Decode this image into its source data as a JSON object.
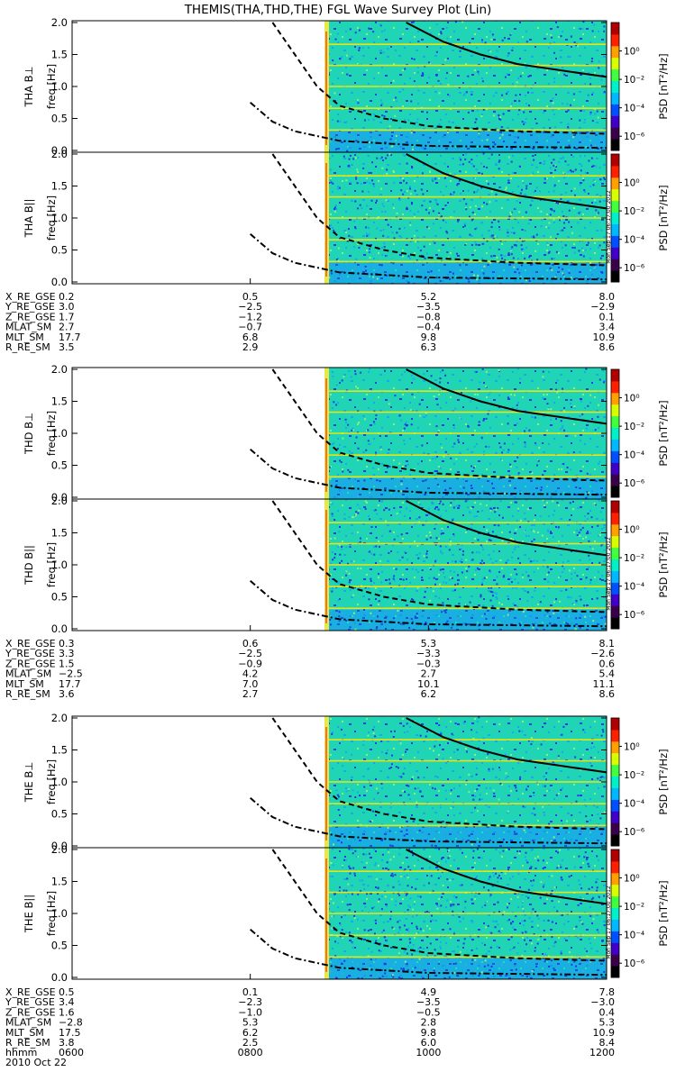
{
  "title": "THEMIS(THA,THD,THE) FGL Wave Survey Plot (Lin)",
  "colors": {
    "background": "#ffffff",
    "noise_low": "#1a3de0",
    "noise_mid": "#19a8e8",
    "noise_high": "#1fe6a8",
    "band_line": "#ffe600",
    "hot_edge": "#ff2020",
    "curve": "#000000"
  },
  "colorbar": {
    "label": "PSD [nT²/Hz]",
    "tick_labels": [
      "10⁰",
      "10⁻²",
      "10⁻⁴",
      "10⁻⁶"
    ],
    "colors": [
      "#000000",
      "#3a004a",
      "#4000c8",
      "#0050ff",
      "#00b8ff",
      "#00f0c8",
      "#40ff40",
      "#d8ff00",
      "#ffa000",
      "#ff2000",
      "#b00000"
    ]
  },
  "stamp": "Mon Sep 17 06:17:00 2012",
  "frequency_ticks": [
    "0.0",
    "0.5",
    "1.0",
    "1.5",
    "2.0"
  ],
  "time_axis": {
    "row_label": "hhmm",
    "ticks": [
      "0600",
      "0800",
      "1000",
      "1200"
    ],
    "date": "2010 Oct 22"
  },
  "ephem_row_labels": [
    "X_RE_GSE",
    "Y_RE_GSE",
    "Z_RE_GSE",
    "MLAT_SM",
    "MLT_SM",
    "R_RE_SM"
  ],
  "probes": [
    {
      "id": "THA",
      "panels": [
        {
          "ylabel": "THA B⊥",
          "freq_label": "freq [Hz]"
        },
        {
          "ylabel": "THA B||",
          "freq_label": "freq [Hz]"
        }
      ],
      "ephemeris": [
        [
          "0.2",
          "0.5",
          "5.2",
          "8.0"
        ],
        [
          "3.0",
          "−2.5",
          "−3.5",
          "−2.9"
        ],
        [
          "1.7",
          "−1.2",
          "−0.8",
          "0.1"
        ],
        [
          "2.7",
          "−0.7",
          "−0.4",
          "3.4"
        ],
        [
          "17.7",
          "6.8",
          "9.8",
          "10.9"
        ],
        [
          "3.5",
          "2.9",
          "6.3",
          "8.6"
        ]
      ]
    },
    {
      "id": "THD",
      "panels": [
        {
          "ylabel": "THD B⊥",
          "freq_label": "freq [Hz]"
        },
        {
          "ylabel": "THD B||",
          "freq_label": "freq [Hz]"
        }
      ],
      "ephemeris": [
        [
          "0.3",
          "0.6",
          "5.3",
          "8.1"
        ],
        [
          "3.3",
          "−2.5",
          "−3.3",
          "−2.6"
        ],
        [
          "1.5",
          "−0.9",
          "−0.3",
          "0.6"
        ],
        [
          "−2.5",
          "4.2",
          "2.7",
          "5.4"
        ],
        [
          "17.7",
          "7.0",
          "10.1",
          "11.1"
        ],
        [
          "3.6",
          "2.7",
          "6.2",
          "8.6"
        ]
      ]
    },
    {
      "id": "THE",
      "panels": [
        {
          "ylabel": "THE B⊥",
          "freq_label": "freq [Hz]"
        },
        {
          "ylabel": "THE B||",
          "freq_label": "freq [Hz]"
        }
      ],
      "ephemeris": [
        [
          "0.5",
          "0.1",
          "4.9",
          "7.8"
        ],
        [
          "3.4",
          "−2.3",
          "−3.5",
          "−3.0"
        ],
        [
          "1.6",
          "−1.0",
          "−0.5",
          "0.4"
        ],
        [
          "−2.8",
          "5.3",
          "2.8",
          "5.3"
        ],
        [
          "17.5",
          "6.2",
          "9.8",
          "10.9"
        ],
        [
          "3.8",
          "2.5",
          "6.0",
          "8.4"
        ]
      ]
    }
  ],
  "chart_data": {
    "type": "heatmap",
    "title": "THEMIS(THA,THD,THE) FGL Wave Survey Plot (Lin)",
    "xlabel": "hhmm",
    "ylabel": "freq [Hz]",
    "ylim": [
      0,
      2.0
    ],
    "x_range_hhmm": [
      "0600",
      "1200"
    ],
    "data_start_hhmm": [
      "0850",
      "0850",
      "0850"
    ],
    "colorbar_range_log10": [
      -7,
      2
    ],
    "colorbar_label": "PSD [nT²/Hz]",
    "panels": [
      "THA B⊥",
      "THA B||",
      "THD B⊥",
      "THD B||",
      "THE B⊥",
      "THE B||"
    ],
    "band_lines_hz": [
      0.32,
      0.66,
      1.0,
      1.33,
      1.66
    ],
    "curves": [
      {
        "style": "solid",
        "points": [
          [
            "0945",
            2.0
          ],
          [
            "1010",
            1.7
          ],
          [
            "1035",
            1.5
          ],
          [
            "1100",
            1.35
          ],
          [
            "1130",
            1.25
          ],
          [
            "1200",
            1.15
          ]
        ]
      },
      {
        "style": "dashed",
        "points": [
          [
            "0815",
            2.0
          ],
          [
            "0830",
            1.5
          ],
          [
            "0845",
            1.0
          ],
          [
            "0900",
            0.7
          ],
          [
            "0930",
            0.5
          ],
          [
            "1000",
            0.38
          ],
          [
            "1100",
            0.3
          ],
          [
            "1200",
            0.26
          ]
        ]
      },
      {
        "style": "dash-dot",
        "points": [
          [
            "0800",
            0.75
          ],
          [
            "0815",
            0.45
          ],
          [
            "0830",
            0.3
          ],
          [
            "0900",
            0.15
          ],
          [
            "1000",
            0.07
          ],
          [
            "1200",
            0.04
          ]
        ]
      }
    ]
  }
}
